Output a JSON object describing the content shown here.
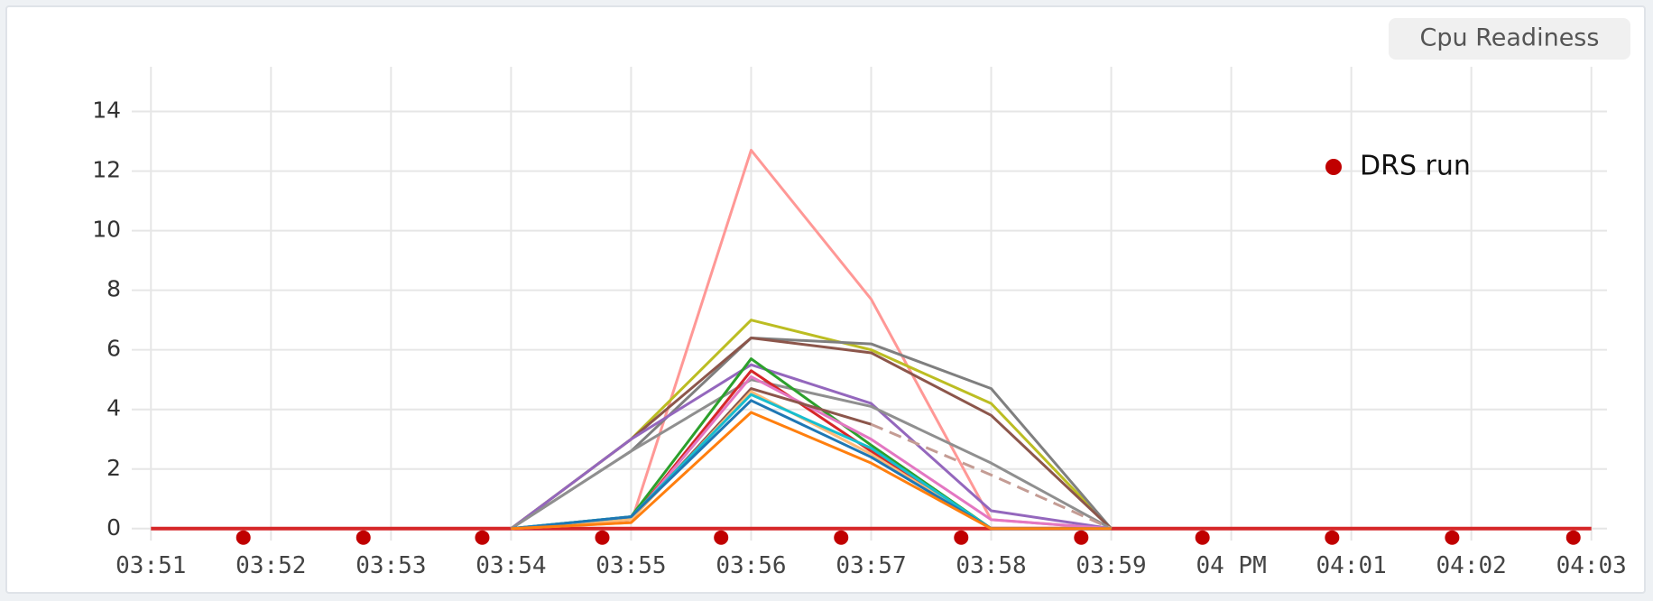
{
  "chart_data": {
    "type": "line",
    "title": "Cpu Readiness",
    "x": [
      0,
      1,
      2,
      3,
      4,
      5,
      6,
      7,
      8,
      9,
      10,
      11,
      12
    ],
    "xlim": [
      -0.16,
      12.13
    ],
    "xticks": [
      {
        "value": 0,
        "label": "03:51"
      },
      {
        "value": 1,
        "label": "03:52"
      },
      {
        "value": 2,
        "label": "03:53"
      },
      {
        "value": 3,
        "label": "03:54"
      },
      {
        "value": 4,
        "label": "03:55"
      },
      {
        "value": 5,
        "label": "03:56"
      },
      {
        "value": 6,
        "label": "03:57"
      },
      {
        "value": 7,
        "label": "03:58"
      },
      {
        "value": 8,
        "label": "03:59"
      },
      {
        "value": 9,
        "label": "04 PM"
      },
      {
        "value": 10,
        "label": "04:01"
      },
      {
        "value": 11,
        "label": "04:02"
      },
      {
        "value": 12,
        "label": "04:03"
      }
    ],
    "ylim": [
      -0.4,
      15.5
    ],
    "yticks": [
      0,
      2,
      4,
      6,
      8,
      10,
      12,
      14
    ],
    "grid": true,
    "legend": "upper right",
    "series": [
      {
        "color": "#d62728",
        "width": 4,
        "values": [
          0,
          0,
          0,
          0,
          0,
          0,
          0,
          0,
          0,
          0,
          0,
          0,
          0
        ]
      },
      {
        "color": "#ff9896",
        "values": [
          null,
          null,
          null,
          0,
          0.2,
          12.7,
          7.7,
          0.3,
          0,
          null,
          null,
          null,
          null
        ]
      },
      {
        "color": "#bcbd22",
        "values": [
          null,
          null,
          null,
          0,
          3.0,
          7.0,
          6.0,
          4.2,
          0,
          null,
          null,
          null,
          null
        ]
      },
      {
        "color": "#7f7f7f",
        "values": [
          null,
          null,
          null,
          0,
          2.6,
          6.4,
          6.2,
          4.7,
          0,
          null,
          null,
          null,
          null
        ]
      },
      {
        "color": "#8c564b",
        "values": [
          null,
          null,
          null,
          0,
          3.0,
          6.4,
          5.9,
          3.8,
          0,
          null,
          null,
          null,
          null
        ]
      },
      {
        "color": "#9467bd",
        "values": [
          null,
          null,
          null,
          0,
          3.0,
          5.5,
          4.2,
          0.6,
          0,
          null,
          null,
          null,
          null
        ]
      },
      {
        "color": "#8f8f8f",
        "values": [
          null,
          null,
          null,
          0,
          2.6,
          5.0,
          4.1,
          2.2,
          0,
          null,
          null,
          null,
          null
        ]
      },
      {
        "color": "#2ca02c",
        "values": [
          null,
          null,
          null,
          0,
          0.4,
          5.7,
          2.8,
          0,
          0,
          null,
          null,
          null,
          null
        ]
      },
      {
        "color": "#d62728",
        "values": [
          null,
          null,
          null,
          0,
          0.3,
          5.3,
          2.6,
          0,
          0,
          null,
          null,
          null,
          null
        ]
      },
      {
        "color": "#e377c2",
        "values": [
          null,
          null,
          null,
          0,
          0.3,
          5.1,
          3.0,
          0.3,
          0,
          null,
          null,
          null,
          null
        ]
      },
      {
        "color": "#8c564b",
        "values": [
          null,
          null,
          null,
          0,
          0.3,
          4.7,
          3.5,
          null,
          null,
          null,
          null,
          null,
          null
        ]
      },
      {
        "color": "#c49c94",
        "dash": true,
        "values": [
          null,
          null,
          null,
          null,
          null,
          null,
          3.5,
          1.8,
          0,
          null,
          null,
          null,
          null
        ]
      },
      {
        "color": "#ffbb78",
        "values": [
          null,
          null,
          null,
          0,
          0.3,
          4.6,
          2.5,
          0,
          0,
          null,
          null,
          null,
          null
        ]
      },
      {
        "color": "#17becf",
        "values": [
          null,
          null,
          null,
          0,
          0.4,
          4.5,
          2.7,
          0,
          0,
          null,
          null,
          null,
          null
        ]
      },
      {
        "color": "#1f77b4",
        "values": [
          null,
          null,
          null,
          0,
          0.4,
          4.3,
          2.4,
          0,
          0,
          null,
          null,
          null,
          null
        ]
      },
      {
        "color": "#ff7f0e",
        "values": [
          null,
          null,
          null,
          0,
          0.2,
          3.9,
          2.2,
          0,
          0,
          null,
          null,
          null,
          null
        ]
      },
      {
        "name": "DRS run",
        "type": "scatter",
        "color": "#c00000",
        "x": [
          0.77,
          1.77,
          2.76,
          3.76,
          4.75,
          5.75,
          6.75,
          7.75,
          8.76,
          9.84,
          10.84,
          11.85
        ],
        "values": [
          -0.3,
          -0.3,
          -0.3,
          -0.3,
          -0.3,
          -0.3,
          -0.3,
          -0.3,
          -0.3,
          -0.3,
          -0.3,
          -0.3
        ]
      }
    ]
  }
}
